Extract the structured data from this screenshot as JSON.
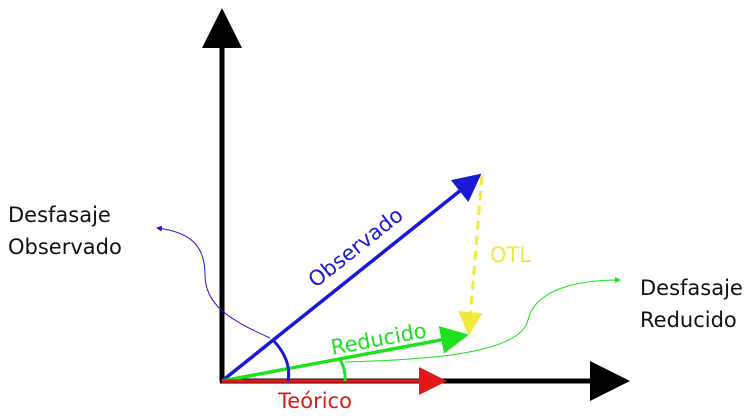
{
  "vectors": {
    "observed": "Observado",
    "reduced": "Reducido",
    "theoretical": "Teórico",
    "otl": "OTL"
  },
  "notes": {
    "observed_lag": [
      "Desfasaje",
      "Observado"
    ],
    "reduced_lag": [
      "Desfasaje",
      "Reducido"
    ]
  }
}
